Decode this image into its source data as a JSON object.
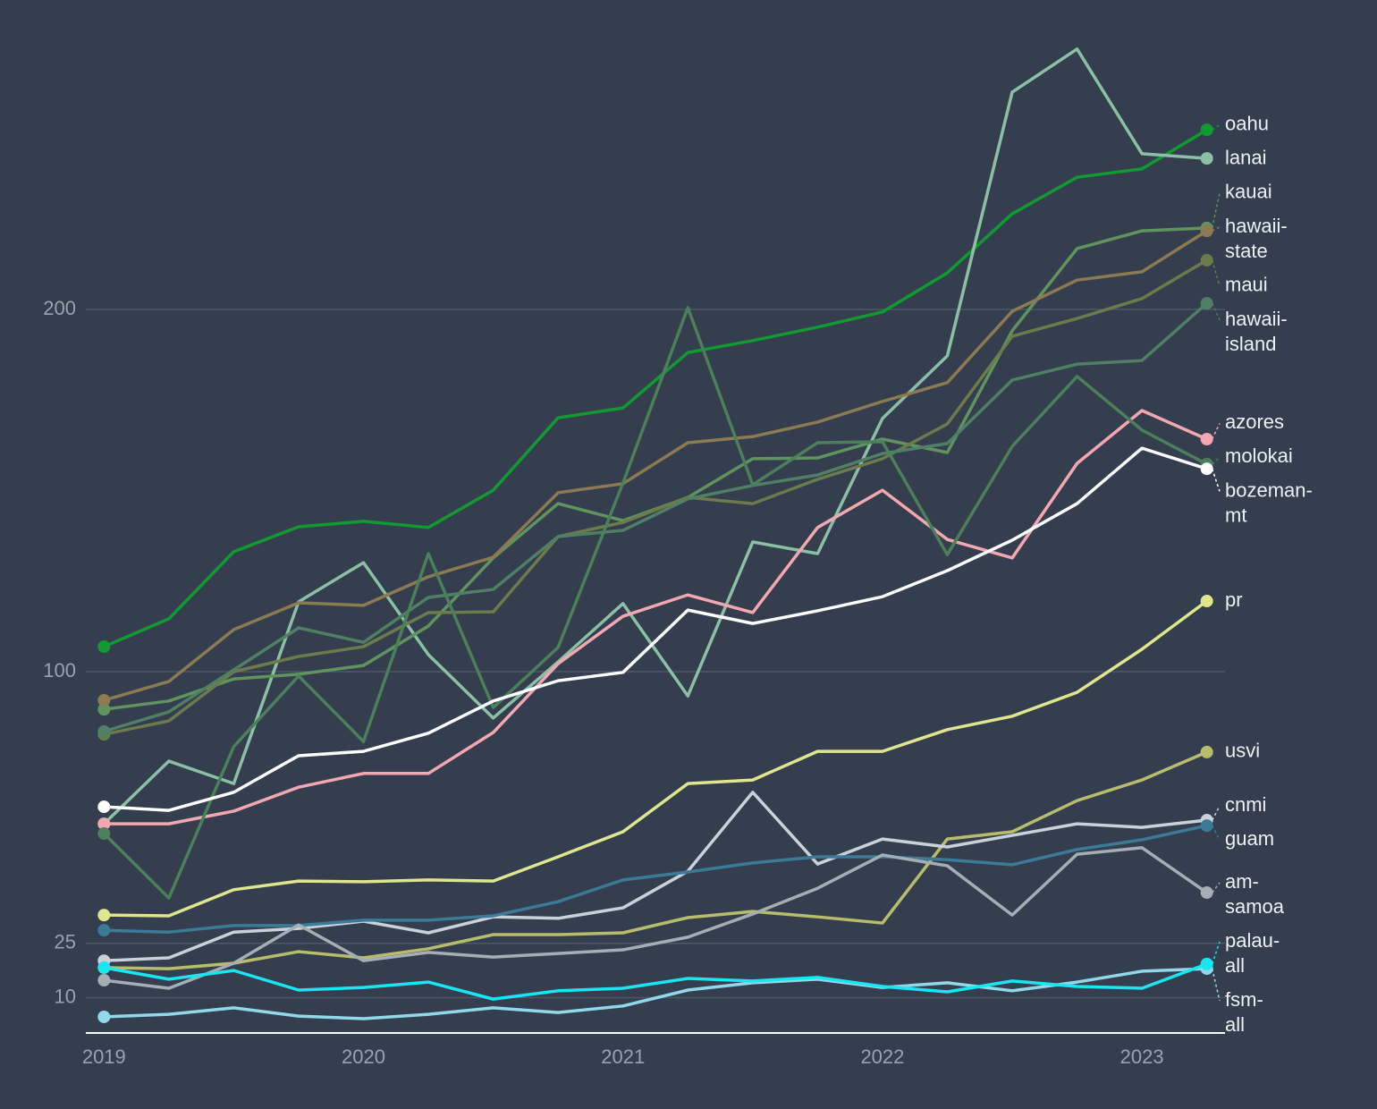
{
  "chart_data": {
    "type": "line",
    "x": [
      2019,
      2019.25,
      2019.5,
      2019.75,
      2020,
      2020.25,
      2020.5,
      2020.75,
      2021,
      2021.25,
      2021.5,
      2021.75,
      2022,
      2022.25,
      2022.5,
      2022.75,
      2023,
      2023.25
    ],
    "xlim": [
      2018.93,
      2023.32
    ],
    "xticks": [
      2019,
      2020,
      2021,
      2022,
      2023
    ],
    "ylim": [
      0,
      280
    ],
    "yticks": [
      10,
      25,
      100,
      200
    ],
    "grid": true,
    "series": [
      {
        "name": "oahu",
        "color": "#109a30",
        "values": [
          106.9,
          114.6,
          133.1,
          140,
          141.5,
          139.8,
          150.1,
          170.1,
          172.8,
          188.1,
          191.4,
          195.1,
          199.3,
          210.1,
          226.4,
          236.5,
          238.8,
          249.6
        ]
      },
      {
        "name": "lanai",
        "color": "#8bbfa6",
        "values": [
          58,
          75.3,
          69.1,
          119.3,
          130.1,
          104.7,
          87.2,
          102.7,
          118.8,
          93.3,
          135.8,
          132.6,
          169.9,
          187.2,
          260,
          271.9,
          243,
          241.7
        ]
      },
      {
        "name": "kauai",
        "color": "#5f945e",
        "values": [
          89.6,
          91.9,
          98,
          99.3,
          101.7,
          112.6,
          131.4,
          146.4,
          141.7,
          148.1,
          158.8,
          159,
          164.2,
          160.5,
          194.1,
          216.8,
          221.7,
          222.5
        ]
      },
      {
        "name": "hawaii-state",
        "color": "#8c7a52",
        "values": [
          92.1,
          97.3,
          111.6,
          119,
          118.3,
          126.2,
          131.6,
          149.4,
          151.9,
          163.2,
          164.9,
          168.9,
          174.6,
          179.8,
          199.5,
          208.1,
          210.4,
          221.7
        ]
      },
      {
        "name": "maui",
        "color": "#6d7b4c",
        "values": [
          82.7,
          86.4,
          100,
          104.2,
          106.9,
          116.3,
          116.5,
          137.3,
          141.2,
          148.1,
          146.4,
          153.1,
          158.8,
          168.4,
          192.6,
          197.5,
          203,
          213.6
        ]
      },
      {
        "name": "hawaii-island",
        "color": "#4f7f65",
        "values": [
          83.5,
          88.9,
          100.5,
          112.1,
          108.1,
          120.5,
          122.7,
          137.3,
          139,
          147.7,
          151.4,
          154.3,
          160.2,
          163,
          180.5,
          184.9,
          185.9,
          201.7
        ]
      },
      {
        "name": "azores",
        "color": "#f2a7b1",
        "values": [
          58,
          58,
          61.5,
          68.1,
          71.9,
          71.9,
          83.2,
          102.2,
          115.3,
          121.2,
          116.3,
          139.8,
          150.1,
          136.5,
          131.4,
          157.5,
          172.1,
          164.2
        ]
      },
      {
        "name": "molokai",
        "color": "#4c7f5c",
        "values": [
          55.3,
          37.5,
          79.3,
          98.8,
          80.7,
          132.6,
          90.1,
          106.7,
          152.1,
          200.5,
          151.6,
          163.2,
          163.5,
          132.3,
          162.2,
          181.5,
          166.7,
          157.3
        ]
      },
      {
        "name": "bozeman-mt",
        "color": "#ffffff",
        "values": [
          62.7,
          61.7,
          66.7,
          76.8,
          78,
          83,
          91.9,
          97.5,
          99.8,
          117,
          113.3,
          116.8,
          120.7,
          127.9,
          136.3,
          146.4,
          161.7,
          156
        ]
      },
      {
        "name": "pr",
        "color": "#dfe68d",
        "values": [
          32.8,
          32.6,
          39.8,
          42.2,
          42,
          42.5,
          42.2,
          48.9,
          55.8,
          69.1,
          70.1,
          78,
          78,
          84,
          87.7,
          94.3,
          106.2,
          119.5
        ]
      },
      {
        "name": "usvi",
        "color": "#b8bd6b",
        "values": [
          18.3,
          18,
          19.5,
          22.7,
          21,
          23.5,
          27.4,
          27.4,
          27.9,
          32.1,
          33.8,
          32.3,
          30.6,
          53.8,
          55.8,
          64.4,
          70.1,
          77.8
        ]
      },
      {
        "name": "cnmi",
        "color": "#c9d1d9",
        "values": [
          20.2,
          21,
          28.1,
          29.1,
          31.1,
          27.9,
          32.3,
          31.9,
          34.8,
          44.9,
          66.7,
          46.9,
          53.8,
          51.6,
          54.8,
          58,
          57,
          59
        ]
      },
      {
        "name": "guam",
        "color": "#3c7b97",
        "values": [
          28.6,
          28.1,
          29.9,
          29.9,
          31.4,
          31.4,
          32.6,
          36.5,
          42.5,
          44.7,
          47.2,
          48.9,
          48.9,
          48.1,
          46.7,
          50.9,
          53.6,
          57.5
        ]
      },
      {
        "name": "am-samoa",
        "color": "#a5adb5",
        "values": [
          14.8,
          12.6,
          19.5,
          30.1,
          20.2,
          22.5,
          21.2,
          22.2,
          23.2,
          26.7,
          33.1,
          40.2,
          49.4,
          46.4,
          32.8,
          49.6,
          51.4,
          39
        ]
      },
      {
        "name": "fsm-all",
        "color": "#8fd9ea",
        "values": [
          4.7,
          5.4,
          7.2,
          4.9,
          4.2,
          5.4,
          7.2,
          5.9,
          7.7,
          12.1,
          14.1,
          15.1,
          12.8,
          14.1,
          11.9,
          14.3,
          17.3,
          18
        ]
      },
      {
        "name": "palau-all",
        "color": "#19e6f2",
        "values": [
          18.3,
          15.1,
          17.5,
          12.1,
          12.8,
          14.3,
          9.6,
          11.9,
          12.6,
          15.3,
          14.6,
          15.6,
          13.1,
          11.6,
          14.6,
          13.1,
          12.6,
          19.3
        ]
      }
    ]
  }
}
